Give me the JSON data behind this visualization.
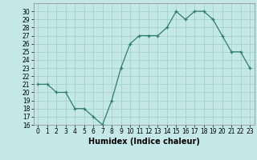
{
  "x": [
    0,
    1,
    2,
    3,
    4,
    5,
    6,
    7,
    8,
    9,
    10,
    11,
    12,
    13,
    14,
    15,
    16,
    17,
    18,
    19,
    20,
    21,
    22,
    23
  ],
  "y": [
    21,
    21,
    20,
    20,
    18,
    18,
    17,
    16,
    19,
    23,
    26,
    27,
    27,
    27,
    28,
    30,
    29,
    30,
    30,
    29,
    27,
    25,
    25,
    23
  ],
  "line_color": "#2e7d6e",
  "marker": "+",
  "bg_color": "#c4e8e8",
  "grid_color": "#a0cccc",
  "xlabel": "Humidex (Indice chaleur)",
  "xlim": [
    -0.5,
    23.5
  ],
  "ylim": [
    16,
    31
  ],
  "yticks": [
    16,
    17,
    18,
    19,
    20,
    21,
    22,
    23,
    24,
    25,
    26,
    27,
    28,
    29,
    30
  ],
  "xticks": [
    0,
    1,
    2,
    3,
    4,
    5,
    6,
    7,
    8,
    9,
    10,
    11,
    12,
    13,
    14,
    15,
    16,
    17,
    18,
    19,
    20,
    21,
    22,
    23
  ],
  "tick_fontsize": 5.5,
  "xlabel_fontsize": 7.0
}
